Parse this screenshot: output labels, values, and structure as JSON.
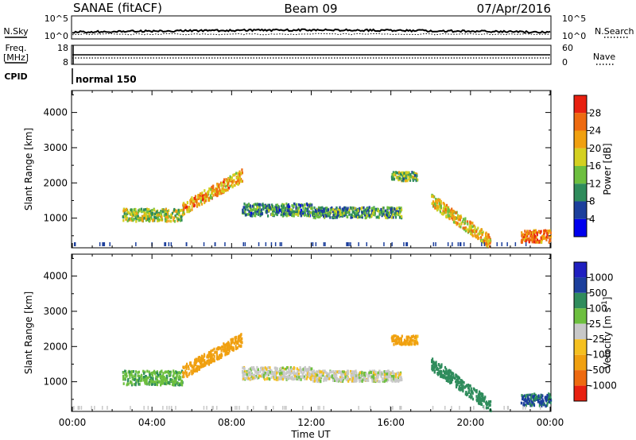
{
  "header": {
    "station": "SANAE (fitACF)",
    "beam": "Beam 09",
    "date": "07/Apr/2016"
  },
  "nsky_panel": {
    "left_label": "N.Sky",
    "right_label": "N.Search",
    "y_ticks_left": [
      "10^5",
      "10^0"
    ],
    "y_ticks_right": [
      "10^5",
      "10^0"
    ]
  },
  "freq_panel": {
    "left_label_1": "Freq.",
    "left_label_2": "[MHz]",
    "right_label": "Nave",
    "y_ticks_left": [
      "18",
      "8"
    ],
    "y_ticks_right": [
      "60",
      "0"
    ],
    "freq_value_mhz": 13
  },
  "cpid_panel": {
    "label": "CPID",
    "program": "normal 150"
  },
  "axes": {
    "xlabel": "Time UT",
    "x_ticks": [
      "00:00",
      "04:00",
      "08:00",
      "12:00",
      "16:00",
      "20:00",
      "00:00"
    ],
    "ylabel": "Slant Range [km]",
    "y_ticks": [
      "1000",
      "2000",
      "3000",
      "4000"
    ]
  },
  "colors": {
    "power_scale": [
      "#0000ee",
      "#1c3f9c",
      "#2f8c5c",
      "#6dbf3f",
      "#d4d020",
      "#f0a010",
      "#ee6a10",
      "#e82010"
    ],
    "velocity_scale": [
      "#e82010",
      "#ee6a10",
      "#f0a010",
      "#f5c020",
      "#c8c8c8",
      "#6dbf3f",
      "#2f8c5c",
      "#1c3f9c",
      "#2020c0"
    ]
  },
  "chart_data": [
    {
      "type": "heatmap",
      "title": "Power",
      "xlabel": "Time UT",
      "ylabel": "Slant Range [km]",
      "xlim": [
        0,
        24
      ],
      "ylim": [
        180,
        4600
      ],
      "colorbar": {
        "label": "Power [dB]",
        "ticks": [
          "4",
          "8",
          "12",
          "16",
          "20",
          "24",
          "28"
        ],
        "range": [
          0,
          32
        ]
      },
      "echo_bands": [
        {
          "t": [
            2.5,
            5.5
          ],
          "r0": 900,
          "r1": 1250,
          "value": 16
        },
        {
          "t": [
            5.5,
            8.5
          ],
          "r0": 1250,
          "r1": 2200,
          "value": 22
        },
        {
          "t": [
            8.5,
            12.0
          ],
          "r0": 1050,
          "r1": 1400,
          "value": 10
        },
        {
          "t": [
            12.0,
            16.5
          ],
          "r0": 1000,
          "r1": 1300,
          "value": 11
        },
        {
          "t": [
            16.0,
            17.3
          ],
          "r0": 2050,
          "r1": 2300,
          "value": 14
        },
        {
          "t": [
            18.0,
            21.0
          ],
          "r0": 300,
          "r1": 1500,
          "value": 20
        },
        {
          "t": [
            22.5,
            24.0
          ],
          "r0": 300,
          "r1": 650,
          "value": 26
        }
      ]
    },
    {
      "type": "heatmap",
      "title": "Velocity",
      "xlabel": "Time UT",
      "ylabel": "Slant Range [km]",
      "xlim": [
        0,
        24
      ],
      "ylim": [
        180,
        4600
      ],
      "colorbar": {
        "label": "Velocity [m s^-1]",
        "ticks": [
          "1000",
          "500",
          "100",
          "25",
          "-25",
          "-100",
          "-500",
          "-1000"
        ]
      },
      "echo_bands": [
        {
          "t": [
            2.5,
            5.5
          ],
          "r0": 900,
          "r1": 1300,
          "value": 80
        },
        {
          "t": [
            5.5,
            8.5
          ],
          "r0": 1250,
          "r1": 2200,
          "value": -300
        },
        {
          "t": [
            8.5,
            12.0
          ],
          "r0": 1050,
          "r1": 1400,
          "value": 0
        },
        {
          "t": [
            12.0,
            16.5
          ],
          "r0": 1000,
          "r1": 1300,
          "value": 0
        },
        {
          "t": [
            16.0,
            17.3
          ],
          "r0": 2050,
          "r1": 2300,
          "value": -150
        },
        {
          "t": [
            18.0,
            21.0
          ],
          "r0": 300,
          "r1": 1500,
          "value": 300
        },
        {
          "t": [
            22.5,
            24.0
          ],
          "r0": 300,
          "r1": 650,
          "value": 600
        }
      ]
    }
  ]
}
